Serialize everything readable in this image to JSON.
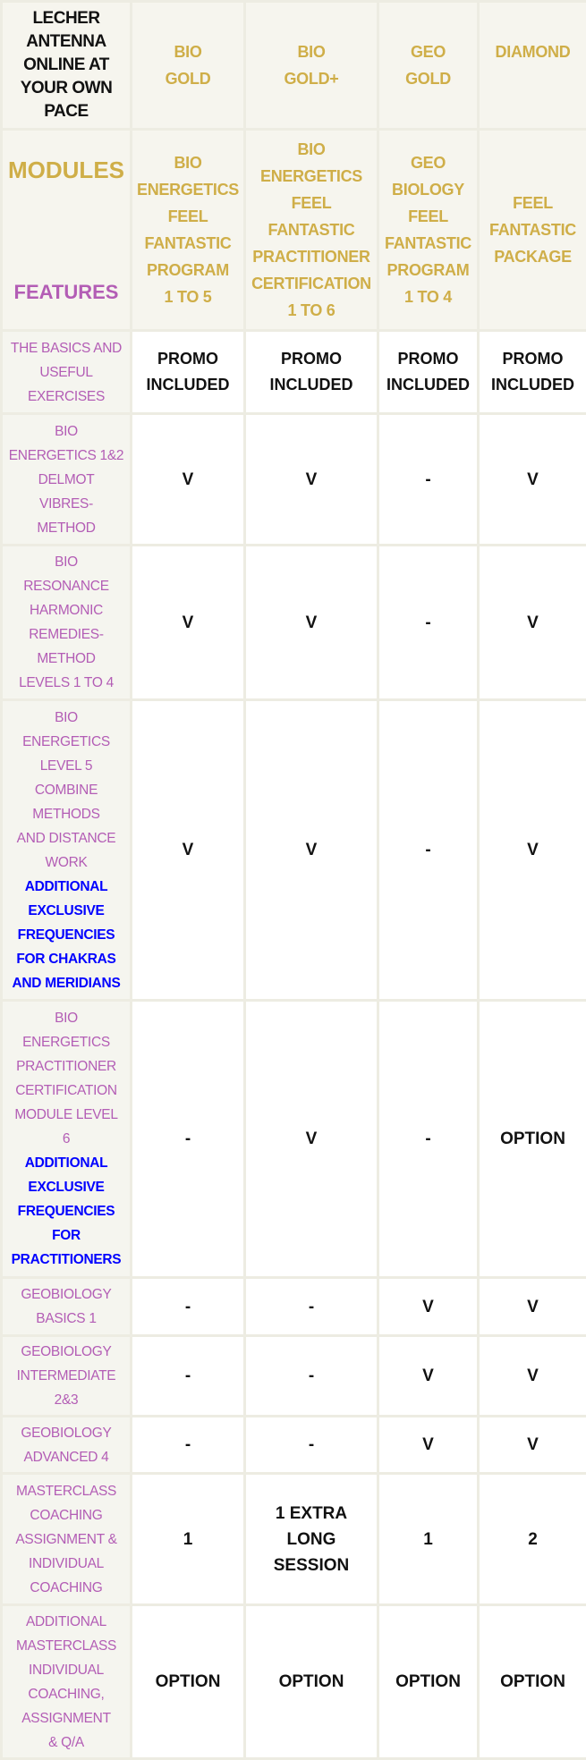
{
  "header": {
    "title": "LECHER\nANTENNA\nONLINE AT\nYOUR OWN\nPACE",
    "columns": [
      "BIO\nGOLD",
      "BIO\nGOLD+",
      "GEO\nGOLD",
      "DIAMOND"
    ]
  },
  "modules_row": {
    "modules_label": "MODULES",
    "features_label": "FEATURES",
    "modules": [
      "BIO\nENERGETICS\nFEEL\nFANTASTIC\nPROGRAM\n1 TO 5",
      "BIO\nENERGETICS\nFEEL\nFANTASTIC\nPRACTITIONER\nCERTIFICATION\n1 TO 6",
      "GEO\nBIOLOGY\nFEEL\nFANTASTIC\nPROGRAM\n1 TO 4",
      "FEEL\nFANTASTIC\nPACKAGE"
    ]
  },
  "colors": {
    "gold": "#cfae48",
    "purple": "#b35db5",
    "blue": "#0000ff"
  },
  "rows": [
    {
      "label": "THE BASICS AND\nUSEFUL\nEXERCISES",
      "extra": "",
      "values": [
        "PROMO\nINCLUDED",
        "PROMO\nINCLUDED",
        "PROMO\nINCLUDED",
        "PROMO\nINCLUDED"
      ]
    },
    {
      "label": "BIO\nENERGETICS 1&2\nDELMOT\nVIBRES-\nMETHOD",
      "extra": "",
      "values": [
        "V",
        "V",
        "-",
        "V"
      ]
    },
    {
      "label": "BIO\nRESONANCE\nHARMONIC\nREMEDIES-\nMETHOD\nLEVELS 1 TO 4",
      "extra": "",
      "values": [
        "V",
        "V",
        "-",
        "V"
      ]
    },
    {
      "label": "BIO\nENERGETICS\nLEVEL 5\nCOMBINE\nMETHODS\nAND DISTANCE\nWORK",
      "extra": "ADDITIONAL\nEXCLUSIVE\nFREQUENCIES\nFOR CHAKRAS\nAND MERIDIANS",
      "values": [
        "V",
        "V",
        "-",
        "V"
      ]
    },
    {
      "label": "BIO\nENERGETICS\nPRACTITIONER\nCERTIFICATION\nMODULE LEVEL\n6",
      "extra": "ADDITIONAL\nEXCLUSIVE\nFREQUENCIES\nFOR\nPRACTITIONERS",
      "values": [
        "-",
        "V",
        "-",
        "OPTION"
      ]
    },
    {
      "label": "GEOBIOLOGY\nBASICS 1",
      "extra": "",
      "values": [
        "-",
        "-",
        "V",
        "V"
      ]
    },
    {
      "label": "GEOBIOLOGY\nINTERMEDIATE\n2&3",
      "extra": "",
      "values": [
        "-",
        "-",
        "V",
        "V"
      ]
    },
    {
      "label": "GEOBIOLOGY\nADVANCED 4",
      "extra": "",
      "values": [
        "-",
        "-",
        "V",
        "V"
      ]
    },
    {
      "label": "MASTERCLASS\nCOACHING\nASSIGNMENT &\nINDIVIDUAL\nCOACHING",
      "extra": "",
      "values": [
        "1",
        "1 EXTRA\nLONG\nSESSION",
        "1",
        "2"
      ]
    },
    {
      "label": "ADDITIONAL\nMASTERCLASS\nINDIVIDUAL\nCOACHING,\nASSIGNMENT\n& Q/A",
      "extra": "",
      "values": [
        "OPTION",
        "OPTION",
        "OPTION",
        "OPTION"
      ]
    }
  ]
}
